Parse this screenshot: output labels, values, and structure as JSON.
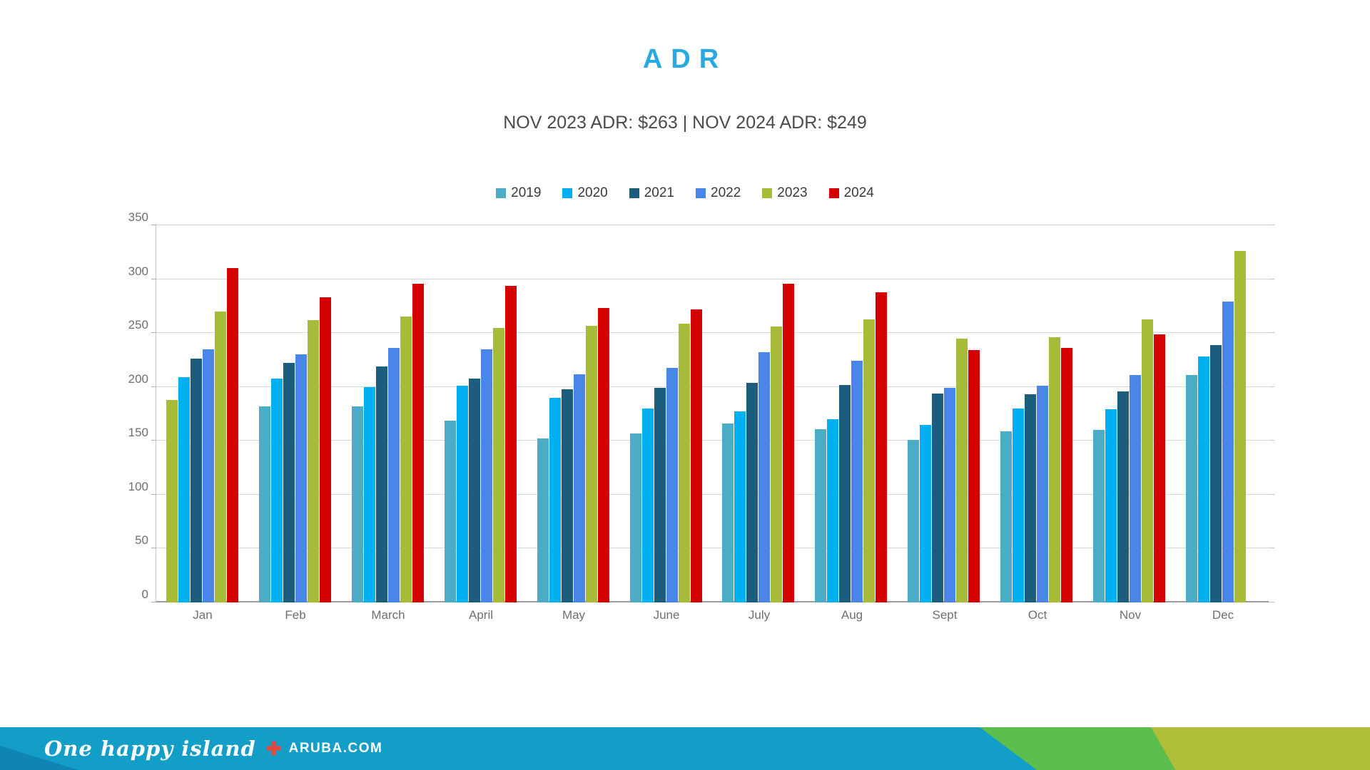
{
  "page": {
    "title": "ADR",
    "subtitle": "NOV 2023 ADR: $263 | NOV 2024 ADR: $249"
  },
  "chart_data": {
    "type": "bar",
    "title": "ADR",
    "subtitle": "NOV 2023 ADR: $263 | NOV 2024 ADR: $249",
    "categories": [
      "Jan",
      "Feb",
      "March",
      "April",
      "May",
      "June",
      "July",
      "Aug",
      "Sept",
      "Oct",
      "Nov",
      "Dec"
    ],
    "series": [
      {
        "name": "2019",
        "color": "#4BACC6",
        "values": [
          188,
          182,
          182,
          169,
          152,
          157,
          166,
          161,
          151,
          159,
          160,
          211
        ],
        "bar_color_overrides": {
          "0": "#A8BB38"
        }
      },
      {
        "name": "2020",
        "color": "#00B0F0",
        "values": [
          209,
          208,
          200,
          201,
          190,
          180,
          177,
          170,
          165,
          180,
          179,
          228
        ]
      },
      {
        "name": "2021",
        "color": "#1C5D7D",
        "values": [
          226,
          222,
          219,
          208,
          198,
          199,
          204,
          202,
          194,
          193,
          196,
          239
        ]
      },
      {
        "name": "2022",
        "color": "#4A86E8",
        "values": [
          235,
          230,
          236,
          235,
          212,
          218,
          232,
          224,
          199,
          201,
          211,
          279
        ]
      },
      {
        "name": "2023",
        "color": "#A8BB38",
        "values": [
          270,
          262,
          265,
          255,
          257,
          259,
          256,
          263,
          245,
          246,
          263,
          326
        ]
      },
      {
        "name": "2024",
        "color": "#D40000",
        "values": [
          310,
          283,
          296,
          294,
          273,
          272,
          296,
          288,
          234,
          236,
          249,
          null
        ]
      }
    ],
    "xlabel": "",
    "ylabel": "",
    "ylim": [
      0,
      350
    ],
    "yticks": [
      0,
      50,
      100,
      150,
      200,
      250,
      300,
      350
    ],
    "grid": true,
    "legend_position": "top"
  },
  "footer": {
    "tagline": "One happy island",
    "plus_symbol": "✚",
    "site": "ARUBA.COM",
    "colors": {
      "base_teal": "#129EC7",
      "green": "#5CBE4E",
      "olive": "#AEBE37",
      "navy": "#0F85B4",
      "plus_red": "#E8453C"
    }
  },
  "style": {
    "title_color": "#29A9E1",
    "subtitle_color": "#4B4B4B",
    "gridline_color": "#D8D8D8",
    "axis_label_color": "#6F6F6F"
  }
}
